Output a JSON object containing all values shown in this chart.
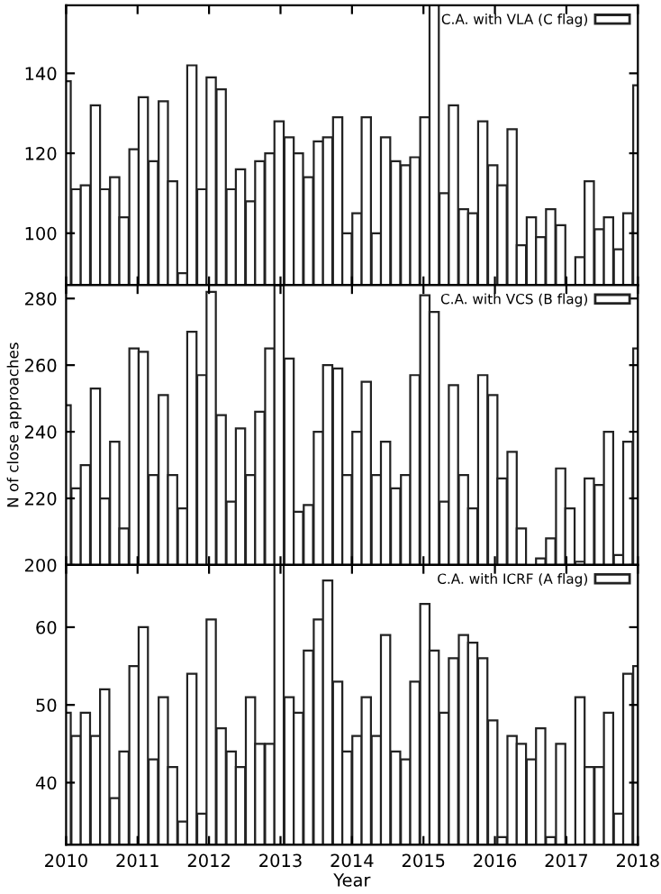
{
  "chart_data": [
    {
      "type": "bar",
      "xlim": [
        2010,
        2018
      ],
      "xticks": [
        2010,
        2011,
        2012,
        2013,
        2014,
        2015,
        2016,
        2017,
        2018
      ],
      "ylim": [
        87,
        157
      ],
      "yticks": [
        100,
        120,
        140
      ],
      "tick_labels": "y",
      "legend": "top right",
      "x": [
        2010.0,
        2010.14,
        2010.27,
        2010.41,
        2010.54,
        2010.68,
        2010.81,
        2010.95,
        2011.08,
        2011.22,
        2011.36,
        2011.49,
        2011.63,
        2011.76,
        2011.9,
        2012.03,
        2012.17,
        2012.31,
        2012.44,
        2012.58,
        2012.71,
        2012.85,
        2012.98,
        2013.12,
        2013.25,
        2013.39,
        2013.53,
        2013.66,
        2013.8,
        2013.93,
        2014.07,
        2014.2,
        2014.34,
        2014.47,
        2014.61,
        2014.75,
        2014.88,
        2015.02,
        2015.15,
        2015.29,
        2015.42,
        2015.56,
        2015.69,
        2015.83,
        2015.97,
        2016.1,
        2016.24,
        2016.37,
        2016.51,
        2016.64,
        2016.78,
        2016.92,
        2017.05,
        2017.19,
        2017.32,
        2017.46,
        2017.59,
        2017.73,
        2017.86,
        2018.0
      ],
      "series": [
        {
          "name": "C.A. with VLA (C flag)",
          "color": "#ffffff",
          "values": [
            138,
            111,
            112,
            132,
            111,
            114,
            104,
            121,
            134,
            118,
            133,
            113,
            90,
            142,
            111,
            139,
            136,
            111,
            116,
            108,
            118,
            120,
            128,
            124,
            120,
            114,
            123,
            124,
            129,
            100,
            105,
            129,
            100,
            124,
            118,
            117,
            119,
            129,
            157,
            110,
            132,
            106,
            105,
            128,
            117,
            112,
            126,
            97,
            104,
            99,
            106,
            102,
            null,
            94,
            113,
            101,
            104,
            96,
            105,
            137
          ]
        }
      ]
    },
    {
      "type": "bar",
      "xlim": [
        2010,
        2018
      ],
      "xticks": [
        2010,
        2011,
        2012,
        2013,
        2014,
        2015,
        2016,
        2017,
        2018
      ],
      "ylim": [
        200,
        284
      ],
      "yticks": [
        200,
        220,
        240,
        260,
        280
      ],
      "tick_labels": "y",
      "legend": "top right",
      "ylabel": "N of close approaches",
      "x": [
        2010.0,
        2010.14,
        2010.27,
        2010.41,
        2010.54,
        2010.68,
        2010.81,
        2010.95,
        2011.08,
        2011.22,
        2011.36,
        2011.49,
        2011.63,
        2011.76,
        2011.9,
        2012.03,
        2012.17,
        2012.31,
        2012.44,
        2012.58,
        2012.71,
        2012.85,
        2012.98,
        2013.12,
        2013.25,
        2013.39,
        2013.53,
        2013.66,
        2013.8,
        2013.93,
        2014.07,
        2014.2,
        2014.34,
        2014.47,
        2014.61,
        2014.75,
        2014.88,
        2015.02,
        2015.15,
        2015.29,
        2015.42,
        2015.56,
        2015.69,
        2015.83,
        2015.97,
        2016.1,
        2016.24,
        2016.37,
        2016.51,
        2016.64,
        2016.78,
        2016.92,
        2017.05,
        2017.19,
        2017.32,
        2017.46,
        2017.59,
        2017.73,
        2017.86,
        2018.0
      ],
      "series": [
        {
          "name": "C.A. with VCS (B flag)",
          "color": "#ffffff",
          "values": [
            248,
            223,
            230,
            253,
            220,
            237,
            211,
            265,
            264,
            227,
            251,
            227,
            217,
            270,
            257,
            282,
            245,
            219,
            241,
            227,
            246,
            265,
            284,
            262,
            216,
            218,
            240,
            260,
            259,
            227,
            240,
            255,
            227,
            237,
            223,
            227,
            257,
            281,
            276,
            219,
            254,
            227,
            217,
            257,
            251,
            226,
            234,
            211,
            null,
            202,
            208,
            229,
            217,
            201,
            226,
            224,
            240,
            203,
            237,
            265
          ]
        }
      ]
    },
    {
      "type": "bar",
      "xlim": [
        2010,
        2018
      ],
      "xticks": [
        2010,
        2011,
        2012,
        2013,
        2014,
        2015,
        2016,
        2017,
        2018
      ],
      "ylim": [
        32,
        68
      ],
      "yticks": [
        40,
        50,
        60
      ],
      "legend": "top right",
      "xlabel": "Year",
      "x": [
        2010.0,
        2010.14,
        2010.27,
        2010.41,
        2010.54,
        2010.68,
        2010.81,
        2010.95,
        2011.08,
        2011.22,
        2011.36,
        2011.49,
        2011.63,
        2011.76,
        2011.9,
        2012.03,
        2012.17,
        2012.31,
        2012.44,
        2012.58,
        2012.71,
        2012.85,
        2012.98,
        2013.12,
        2013.25,
        2013.39,
        2013.53,
        2013.66,
        2013.8,
        2013.93,
        2014.07,
        2014.2,
        2014.34,
        2014.47,
        2014.61,
        2014.75,
        2014.88,
        2015.02,
        2015.15,
        2015.29,
        2015.42,
        2015.56,
        2015.69,
        2015.83,
        2015.97,
        2016.1,
        2016.24,
        2016.37,
        2016.51,
        2016.64,
        2016.78,
        2016.92,
        2017.05,
        2017.19,
        2017.32,
        2017.46,
        2017.59,
        2017.73,
        2017.86,
        2018.0
      ],
      "series": [
        {
          "name": "C.A. with ICRF (A flag)",
          "color": "#ffffff",
          "values": [
            49,
            46,
            49,
            46,
            52,
            38,
            44,
            55,
            60,
            43,
            51,
            42,
            35,
            54,
            36,
            61,
            47,
            44,
            42,
            51,
            45,
            45,
            68,
            51,
            49,
            57,
            61,
            66,
            53,
            44,
            46,
            51,
            46,
            59,
            44,
            43,
            53,
            63,
            57,
            49,
            56,
            59,
            58,
            56,
            48,
            33,
            46,
            45,
            43,
            47,
            33,
            45,
            null,
            51,
            42,
            42,
            49,
            36,
            54,
            55
          ]
        }
      ]
    }
  ]
}
